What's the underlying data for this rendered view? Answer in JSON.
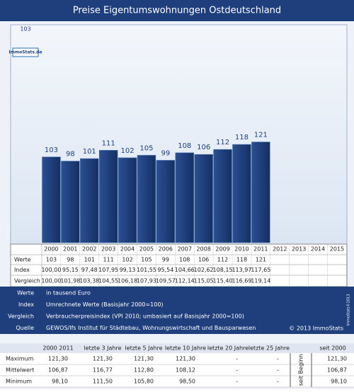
{
  "header": {
    "title": "Preise Eigentumswohnungen Ostdeutschland"
  },
  "logo": "ImmoStats.de",
  "chart_data": {
    "type": "bar",
    "categories": [
      "2000",
      "2001",
      "2002",
      "2003",
      "2004",
      "2005",
      "2006",
      "2007",
      "2008",
      "2009",
      "2010",
      "2011",
      "2012",
      "2013",
      "2014",
      "2015"
    ],
    "values": [
      103,
      98,
      101,
      111,
      102,
      105,
      99,
      108,
      106,
      112,
      118,
      121,
      null,
      null,
      null,
      null
    ],
    "color": "#1f3f7c",
    "ylim": [
      0,
      260
    ],
    "axis_top_label": "103"
  },
  "data_table": {
    "row_labels": [
      "Werte",
      "Index",
      "Vergleich"
    ],
    "index": [
      "100,00",
      "95,15",
      "97,48",
      "107,95",
      "99,13",
      "101,55",
      "95,54",
      "104,66",
      "102,62",
      "108,15",
      "113,97",
      "117,65"
    ],
    "vergleich": [
      "100,00",
      "101,98",
      "103,38",
      "104,55",
      "106,18",
      "107,93",
      "109,57",
      "112,14",
      "115,05",
      "115,40",
      "116,69",
      "119,14"
    ]
  },
  "legend": {
    "rows": [
      [
        "Werte",
        "in tausend Euro"
      ],
      [
        "Index",
        "Umrechnete Werte (Basisjahr 2000=100)"
      ],
      [
        "Vergleich",
        "Verbraucherpreisindex (VPI 2010; umbasiert auf Basisjahr 2000=100)"
      ],
      [
        "Quelle",
        "GEWOS/Ifs Institut für Städtebau, Wohnungswirtschaft und Bausparwesen"
      ]
    ],
    "copyright": "© 2013 ImmoStats",
    "side_note": "ImmoStats©2013"
  },
  "stats_table": {
    "headers": [
      "2000  2011",
      "letzte 3 Jahre",
      "letzte 5 Jahre",
      "letzte 10 Jahre",
      "letzte 20 Jahre",
      "letzte 25 Jahre",
      "seit 2000"
    ],
    "side_label": "seit Beginn",
    "rows": [
      [
        "Maximum",
        "121,30",
        "121,30",
        "121,30",
        "121,30",
        "-",
        "-",
        "121,30"
      ],
      [
        "Mittelwert",
        "106,87",
        "116,77",
        "112,80",
        "108,12",
        "-",
        "-",
        "106,87"
      ],
      [
        "Minimum",
        "98,10",
        "111,50",
        "105,80",
        "98,50",
        "-",
        "-",
        "98,10"
      ]
    ]
  }
}
